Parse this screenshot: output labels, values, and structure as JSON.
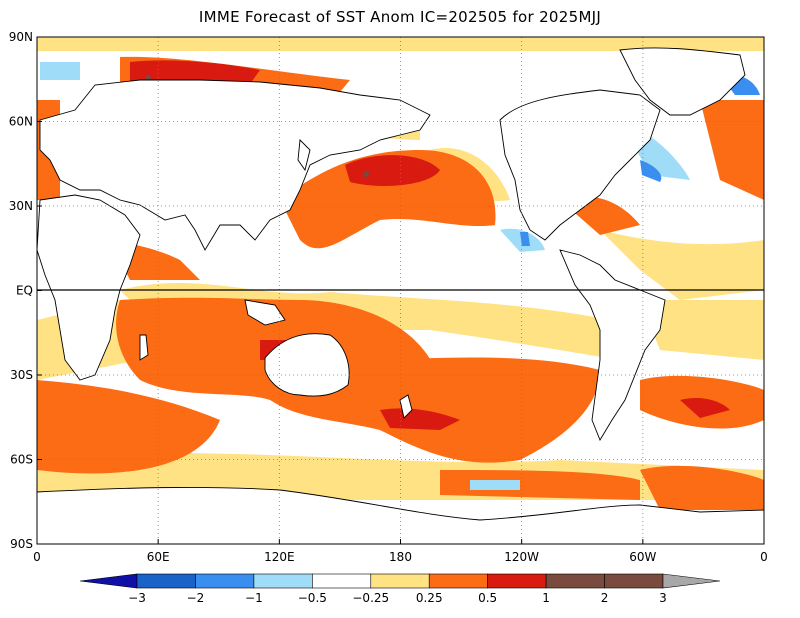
{
  "title": "IMME Forecast of SST Anom IC=202505 for 2025MJJ",
  "map": {
    "projection": "cylindrical-equidistant",
    "lat_range": [
      -90,
      90
    ],
    "lon_range": [
      0,
      360
    ],
    "grid": "dotted",
    "equator_line": true,
    "lat_ticks": [
      {
        "value": 90,
        "label": "90N"
      },
      {
        "value": 60,
        "label": "60N"
      },
      {
        "value": 30,
        "label": "30N"
      },
      {
        "value": 0,
        "label": "EQ"
      },
      {
        "value": -30,
        "label": "30S"
      },
      {
        "value": -60,
        "label": "60S"
      },
      {
        "value": -90,
        "label": "90S"
      }
    ],
    "lon_ticks": [
      {
        "value": 0,
        "label": "0"
      },
      {
        "value": 60,
        "label": "60E"
      },
      {
        "value": 120,
        "label": "120E"
      },
      {
        "value": 180,
        "label": "180"
      },
      {
        "value": 240,
        "label": "120W"
      },
      {
        "value": 300,
        "label": "60W"
      },
      {
        "value": 360,
        "label": "0"
      }
    ]
  },
  "colorbar": {
    "bounds": [
      "-3",
      "-2",
      "-1",
      "-0.5",
      "-0.25",
      "0.25",
      "0.5",
      "1",
      "2",
      "3"
    ],
    "colors": [
      "#1010a8",
      "#1a62c8",
      "#3a8ef0",
      "#9edcf8",
      "#ffffff",
      "#ffe284",
      "#fc6c14",
      "#d81a10",
      "#7a4a3e",
      "#a8a8a8"
    ]
  },
  "palette": {
    "land": "#ffffff",
    "coast": "#000000",
    "warm_weak": "#ffe284",
    "warm": "#fc6c14",
    "warm_strong": "#d81a10",
    "warm_extreme": "#7a4a3e",
    "cool_weak": "#9edcf8",
    "cool": "#3a8ef0"
  }
}
